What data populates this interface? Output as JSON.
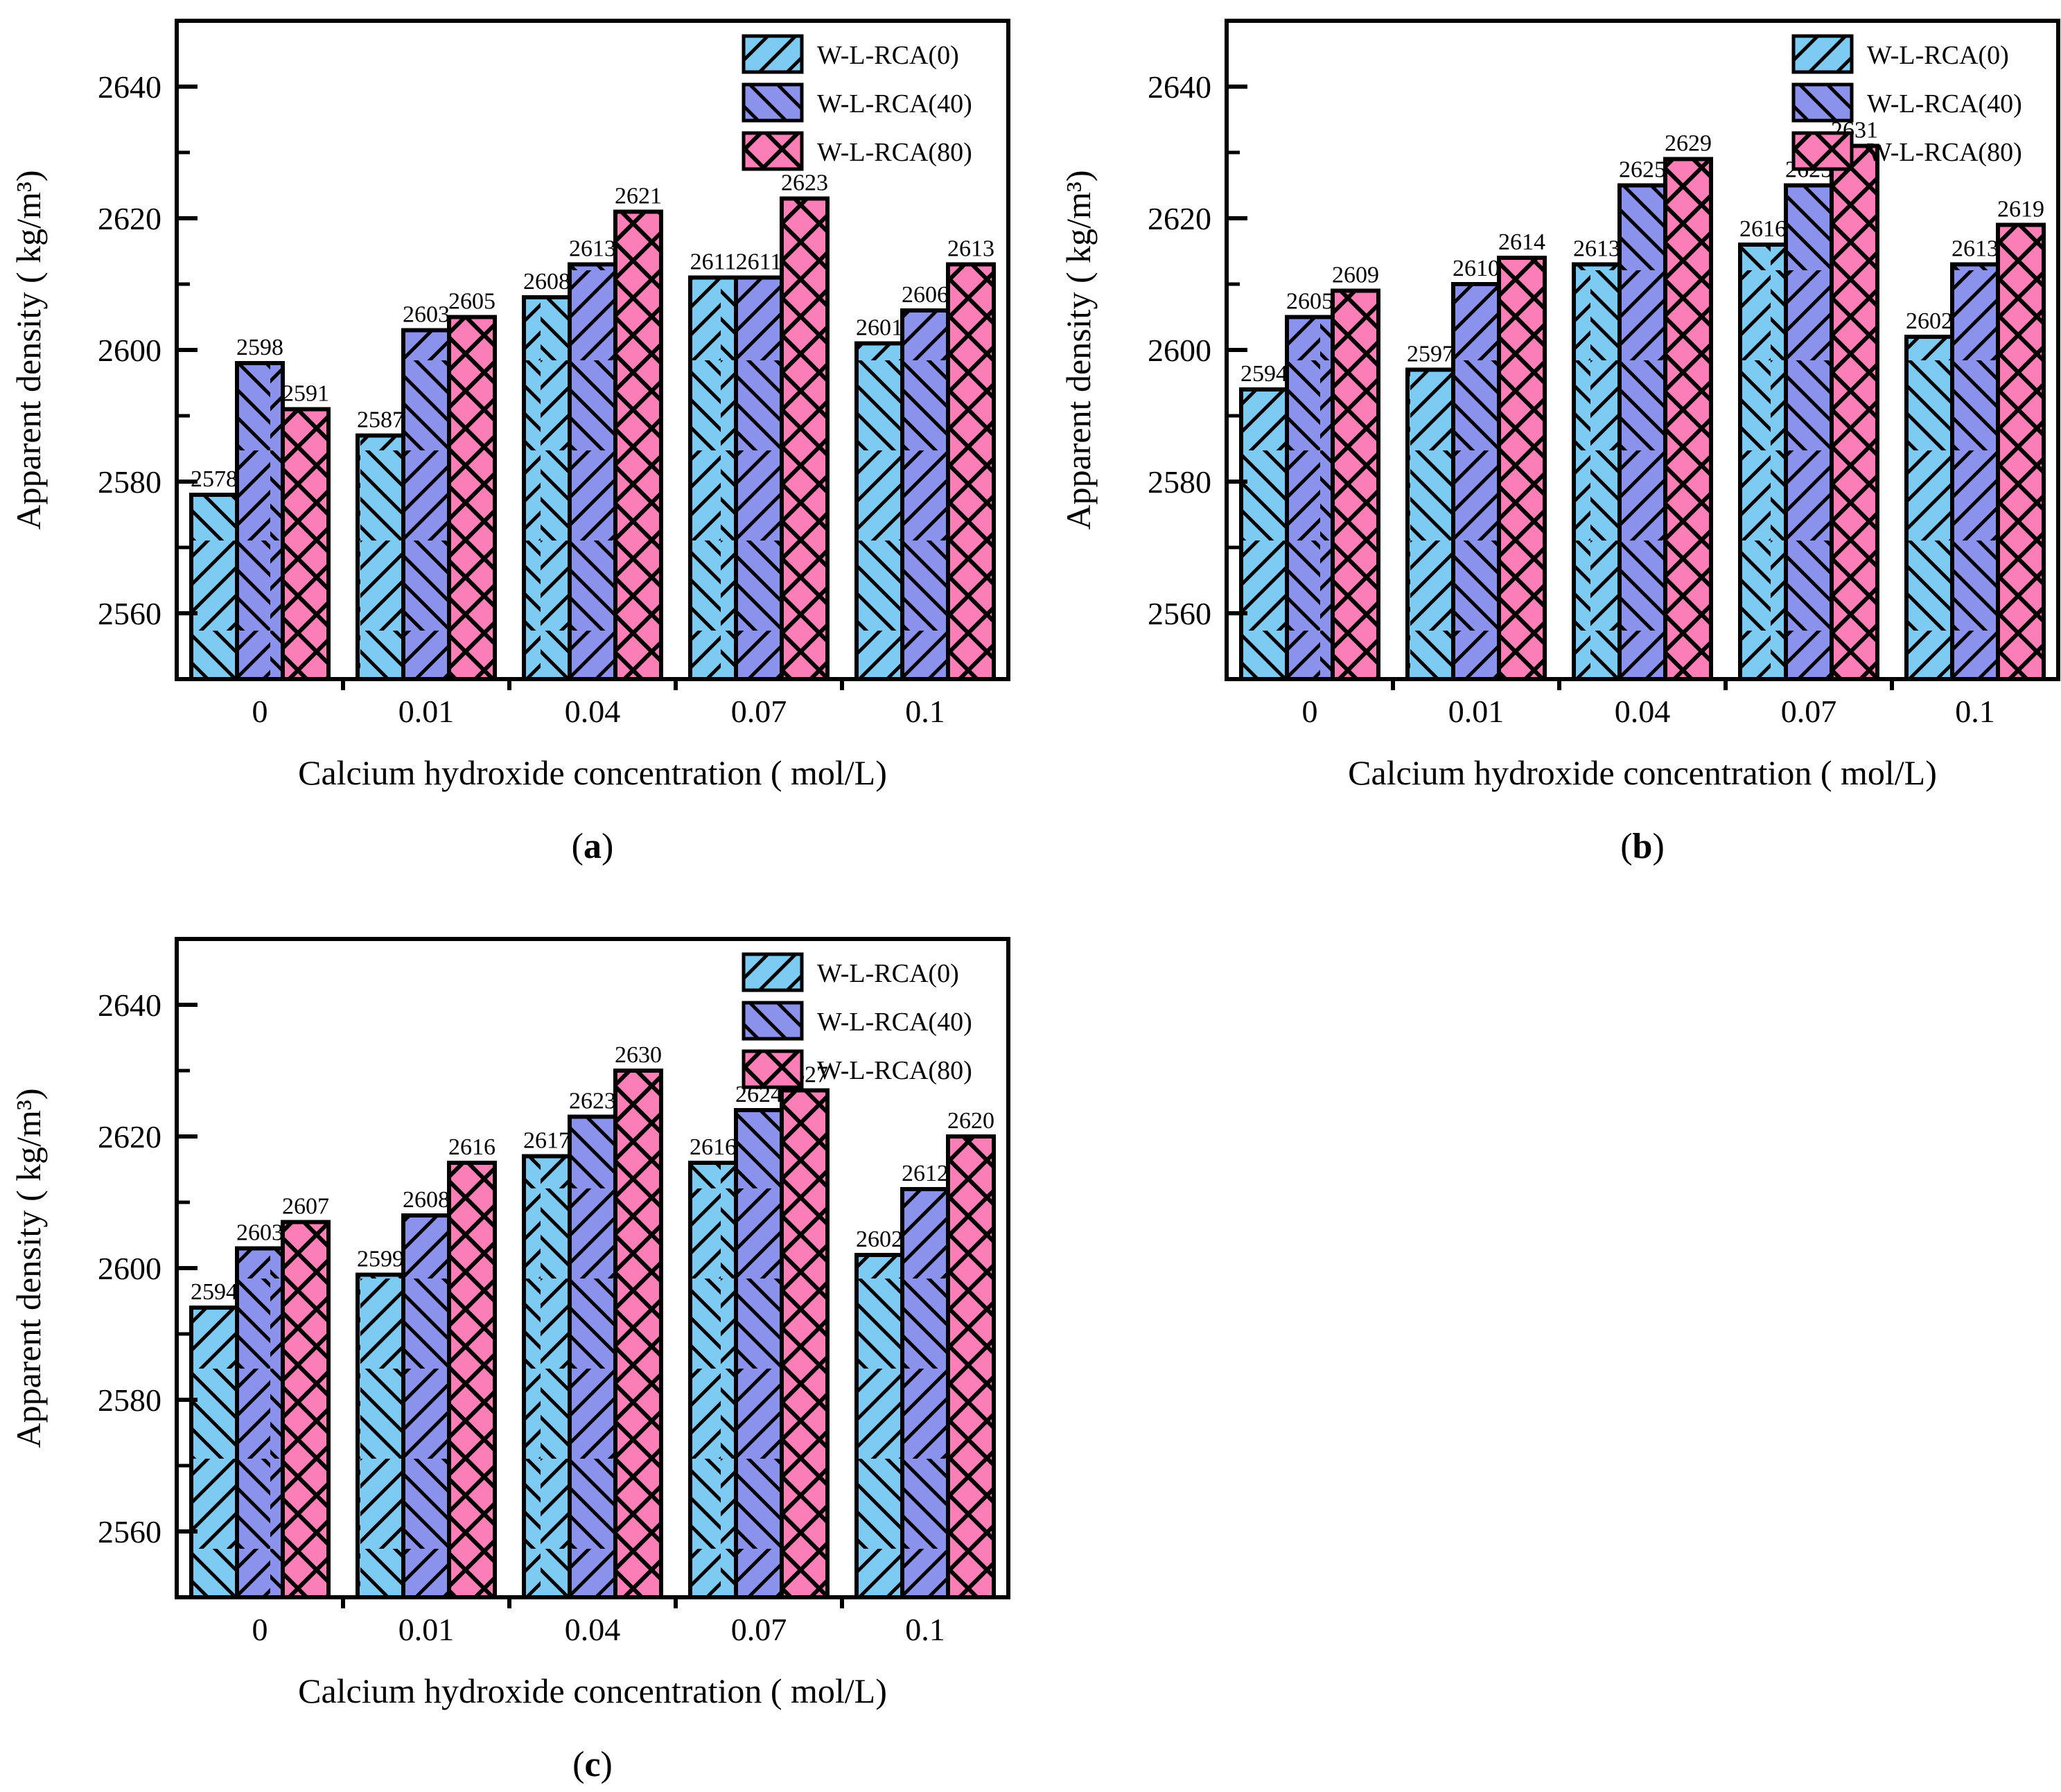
{
  "figure": {
    "background": "#ffffff",
    "series_colors": [
      "#7DCBF3",
      "#8B92EC",
      "#FB7EB6"
    ],
    "outline_color": "#000000",
    "legend_labels": [
      "W-L-RCA(0)",
      "W-L-RCA(40)",
      "W-L-RCA(80)"
    ]
  },
  "chart_data": [
    {
      "type": "bar",
      "panel_label": "(a)",
      "panel_letter": "a",
      "xlabel": "Calcium hydroxide concentration ( mol/L)",
      "ylabel": "Apparent density ( kg/m³)",
      "categories": [
        "0",
        "0.01",
        "0.04",
        "0.07",
        "0.1"
      ],
      "series": [
        {
          "name": "W-L-RCA(0)",
          "values": [
            2578,
            2587,
            2608,
            2611,
            2601
          ]
        },
        {
          "name": "W-L-RCA(40)",
          "values": [
            2598,
            2603,
            2613,
            2611,
            2606
          ]
        },
        {
          "name": "W-L-RCA(80)",
          "values": [
            2591,
            2605,
            2621,
            2623,
            2613
          ]
        }
      ],
      "ylim": [
        2550,
        2650
      ],
      "yticks": [
        2560,
        2580,
        2600,
        2620,
        2640
      ],
      "grid": false,
      "legend_position": "top-right"
    },
    {
      "type": "bar",
      "panel_label": "(b)",
      "panel_letter": "b",
      "xlabel": "Calcium hydroxide concentration ( mol/L)",
      "ylabel": "Apparent density ( kg/m³)",
      "categories": [
        "0",
        "0.01",
        "0.04",
        "0.07",
        "0.1"
      ],
      "series": [
        {
          "name": "W-L-RCA(0)",
          "values": [
            2594,
            2597,
            2613,
            2616,
            2602
          ]
        },
        {
          "name": "W-L-RCA(40)",
          "values": [
            2605,
            2610,
            2625,
            2625,
            2613
          ]
        },
        {
          "name": "W-L-RCA(80)",
          "values": [
            2609,
            2614,
            2629,
            2631,
            2619
          ]
        }
      ],
      "ylim": [
        2550,
        2650
      ],
      "yticks": [
        2560,
        2580,
        2600,
        2620,
        2640
      ],
      "grid": false,
      "legend_position": "top-right"
    },
    {
      "type": "bar",
      "panel_label": "(c)",
      "panel_letter": "c",
      "xlabel": "Calcium hydroxide concentration ( mol/L)",
      "ylabel": "Apparent density ( kg/m³)",
      "categories": [
        "0",
        "0.01",
        "0.04",
        "0.07",
        "0.1"
      ],
      "series": [
        {
          "name": "W-L-RCA(0)",
          "values": [
            2594,
            2599,
            2617,
            2616,
            2602
          ]
        },
        {
          "name": "W-L-RCA(40)",
          "values": [
            2603,
            2608,
            2623,
            2624,
            2612
          ]
        },
        {
          "name": "W-L-RCA(80)",
          "values": [
            2607,
            2616,
            2630,
            2627,
            2620
          ]
        }
      ],
      "ylim": [
        2550,
        2650
      ],
      "yticks": [
        2560,
        2580,
        2600,
        2620,
        2640
      ],
      "grid": false,
      "legend_position": "top-right"
    }
  ]
}
